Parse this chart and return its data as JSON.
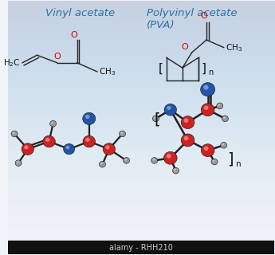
{
  "title_left": "Vinyl acetate",
  "title_right": "Polyvinyl acetate\n(PVA)",
  "title_color": "#2a6fa8",
  "watermark": "alamy - RHH210",
  "red_atom": "#cc2222",
  "blue_atom": "#2255aa",
  "gray_atom": "#999999",
  "black": "#111111",
  "O_label_color": "#cc0000",
  "bond_color": "#222222",
  "bg_light": "#f0f3f7",
  "bg_dark": "#d0d8e4"
}
